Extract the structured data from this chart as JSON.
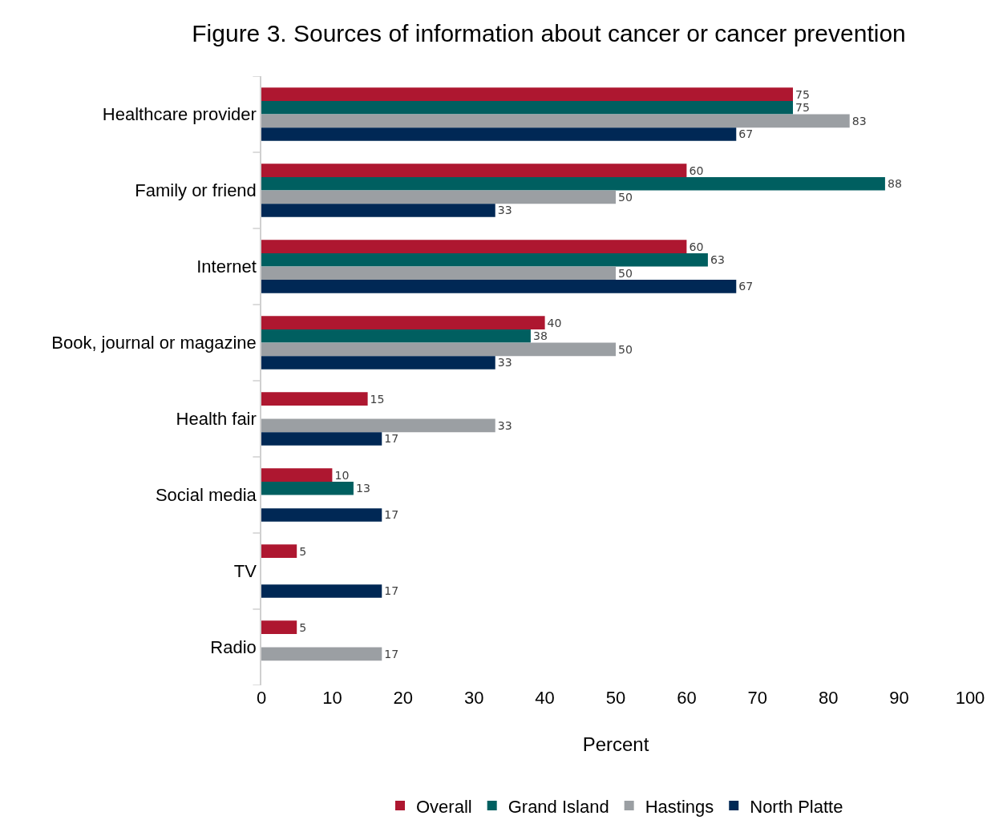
{
  "chart_data": {
    "type": "bar",
    "orientation": "horizontal",
    "title": "Figure 3. Sources of information about cancer or cancer prevention",
    "xlabel": "Percent",
    "categories": [
      "Healthcare provider",
      "Family or friend",
      "Internet",
      "Book, journal or magazine",
      "Health fair",
      "Social media",
      "TV",
      "Radio"
    ],
    "series": [
      {
        "name": "Overall",
        "color": "#ae1730",
        "values": [
          75,
          60,
          60,
          40,
          15,
          10,
          5,
          5
        ]
      },
      {
        "name": "Grand Island",
        "color": "#005f60",
        "values": [
          75,
          88,
          63,
          38,
          null,
          13,
          null,
          null
        ]
      },
      {
        "name": "Hastings",
        "color": "#9b9fa3",
        "values": [
          83,
          50,
          50,
          50,
          33,
          null,
          null,
          17
        ]
      },
      {
        "name": "North Platte",
        "color": "#002855",
        "values": [
          67,
          33,
          67,
          33,
          17,
          17,
          17,
          null
        ]
      }
    ],
    "xlim": [
      0,
      100
    ],
    "xticks": [
      0,
      10,
      20,
      30,
      40,
      50,
      60,
      70,
      80,
      90,
      100
    ],
    "grid": false,
    "legend": "bottom",
    "data_labels": true
  }
}
